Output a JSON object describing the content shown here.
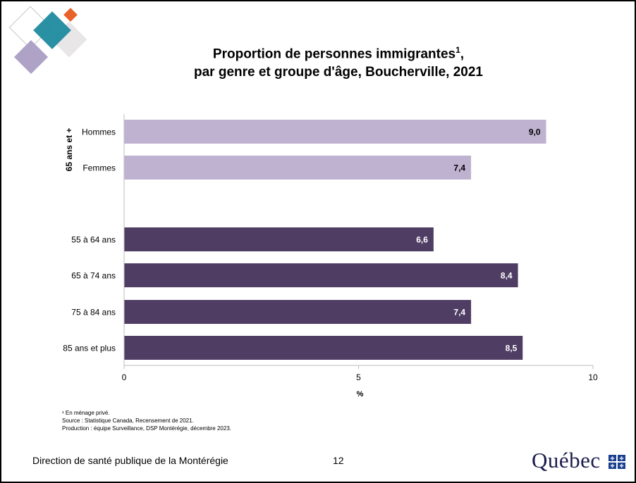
{
  "title_line1": "Proportion de personnes immigrantes",
  "title_sup": "1",
  "title_line1_end": ",",
  "title_line2": "par genre et groupe d'âge, Boucherville, 2021",
  "chart_data": {
    "type": "bar",
    "orientation": "horizontal",
    "group_label": "65 ans et +",
    "categories": [
      "Hommes",
      "Femmes",
      "55 à 64 ans",
      "65 à 74 ans",
      "75 à 84 ans",
      "85 ans et plus"
    ],
    "values": [
      9.0,
      7.4,
      6.6,
      8.4,
      7.4,
      8.5
    ],
    "value_labels": [
      "9,0",
      "7,4",
      "6,6",
      "8,4",
      "7,4",
      "8,5"
    ],
    "bar_colors": [
      "#bfb2d0",
      "#bfb2d0",
      "#4f3d64",
      "#4f3d64",
      "#4f3d64",
      "#4f3d64"
    ],
    "label_colors": [
      "#000000",
      "#000000",
      "#ffffff",
      "#ffffff",
      "#ffffff",
      "#ffffff"
    ],
    "xlabel": "%",
    "xlim": [
      0,
      10
    ],
    "xticks": [
      0,
      5,
      10
    ],
    "xtick_labels": [
      "0",
      "5",
      "10"
    ],
    "grid": false,
    "legend": "none"
  },
  "notes": [
    "¹ En ménage privé.",
    "Source : Statistique Canada, Recensement de 2021.",
    "Production : équipe Surveillance, DSP Montérégie, décembre 2023."
  ],
  "footer": {
    "organization": "Direction de santé publique de la Montérégie",
    "page_number": "12",
    "brand": "Québec"
  },
  "colors": {
    "light_bar": "#bfb2d0",
    "dark_bar": "#4f3d64",
    "logo_teal": "#1f8a9e",
    "logo_orange": "#e8622a",
    "logo_purple": "#aea3c6"
  }
}
